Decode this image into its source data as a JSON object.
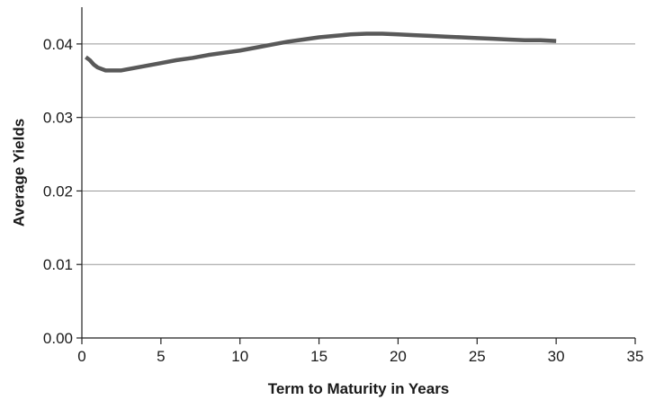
{
  "chart_data": {
    "type": "line",
    "xlabel": "Term to Maturity in Years",
    "ylabel": "Average Yields",
    "xlim": [
      0,
      35
    ],
    "ylim": [
      0,
      0.045
    ],
    "x_ticks": [
      0,
      5,
      10,
      15,
      20,
      25,
      30,
      35
    ],
    "x_tick_labels": [
      "0",
      "5",
      "10",
      "15",
      "20",
      "25",
      "30",
      "35"
    ],
    "y_ticks": [
      0,
      0.01,
      0.02,
      0.03,
      0.04
    ],
    "y_tick_labels": [
      "0.00",
      "0.01",
      "0.02",
      "0.03",
      "0.04"
    ],
    "grid": "horizontal",
    "legend": "none",
    "line_color": "#595959",
    "grid_color": "#999999",
    "series": [
      {
        "x": [
          0.25,
          0.5,
          0.75,
          1,
          1.5,
          2,
          2.5,
          3,
          4,
          5,
          6,
          7,
          8,
          9,
          10,
          11,
          12,
          13,
          14,
          15,
          16,
          17,
          18,
          19,
          20,
          21,
          22,
          23,
          24,
          25,
          26,
          27,
          28,
          29,
          30
        ],
        "values": [
          0.0382,
          0.0378,
          0.0372,
          0.0368,
          0.0364,
          0.0364,
          0.0364,
          0.0366,
          0.037,
          0.0374,
          0.0378,
          0.0381,
          0.0385,
          0.0388,
          0.0391,
          0.0395,
          0.0399,
          0.0403,
          0.0406,
          0.0409,
          0.0411,
          0.0413,
          0.0414,
          0.0414,
          0.0413,
          0.0412,
          0.0411,
          0.041,
          0.0409,
          0.0408,
          0.0407,
          0.0406,
          0.0405,
          0.0405,
          0.0404
        ]
      }
    ]
  }
}
